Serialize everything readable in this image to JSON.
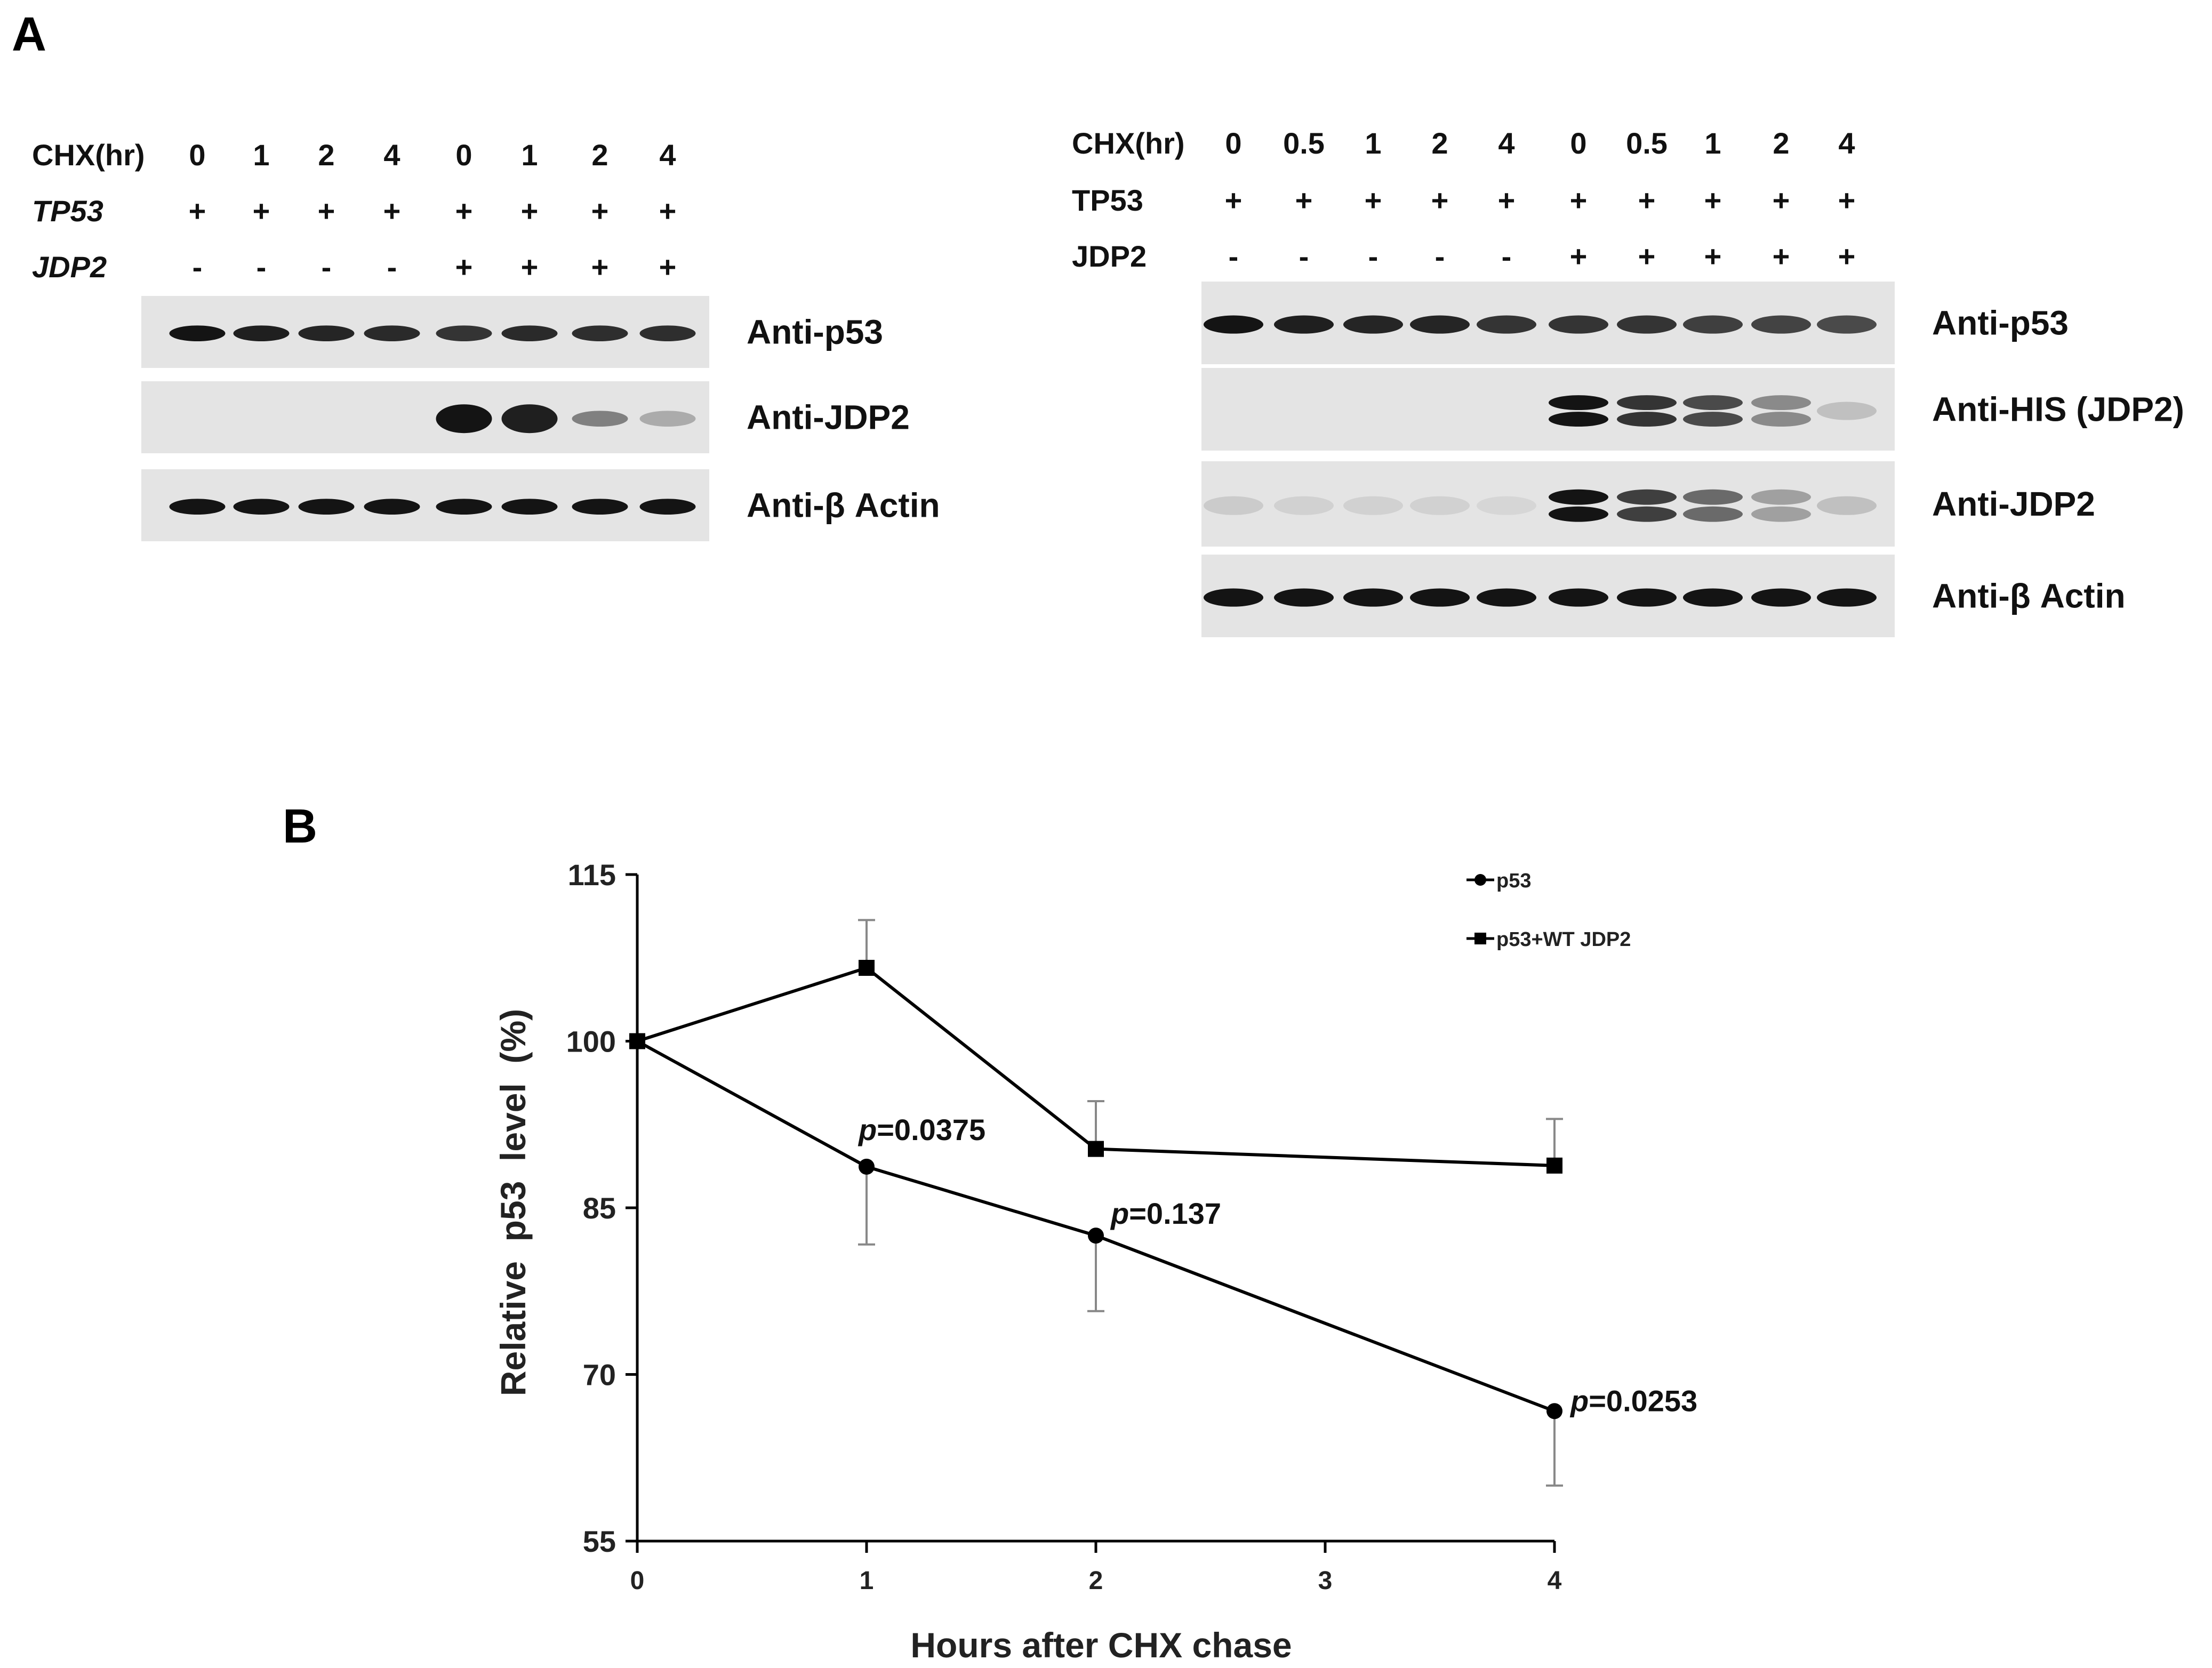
{
  "panel_a": {
    "label": "A",
    "left": {
      "rows": [
        {
          "label": "CHX(hr)",
          "italic": false,
          "values": [
            "0",
            "1",
            "2",
            "4",
            "0",
            "1",
            "2",
            "4"
          ]
        },
        {
          "label": "TP53",
          "italic": true,
          "values": [
            "+",
            "+",
            "+",
            "+",
            "+",
            "+",
            "+",
            "+"
          ]
        },
        {
          "label": "JDP2",
          "italic": true,
          "values": [
            "-",
            "-",
            "-",
            "-",
            "+",
            "+",
            "+",
            "+"
          ]
        }
      ],
      "blots": [
        {
          "label": "Anti-p53",
          "intensity": [
            1,
            0.95,
            0.92,
            0.9,
            0.85,
            0.9,
            0.88,
            0.88
          ],
          "bands": 1
        },
        {
          "label": "Anti-JDP2",
          "intensity": [
            0,
            0,
            0,
            0,
            1,
            0.95,
            0.5,
            0.3
          ],
          "bands": 1
        },
        {
          "label": "Anti-β Actin",
          "intensity": [
            1,
            1,
            1,
            1,
            1,
            1,
            1,
            1
          ],
          "bands": 1
        }
      ]
    },
    "right": {
      "rows": [
        {
          "label": "CHX(hr)",
          "italic": false,
          "values": [
            "0",
            "0.5",
            "1",
            "2",
            "4",
            "0",
            "0.5",
            "1",
            "2",
            "4"
          ]
        },
        {
          "label": "TP53",
          "italic": false,
          "values": [
            "+",
            "+",
            "+",
            "+",
            "+",
            "+",
            "+",
            "+",
            "+",
            "+"
          ]
        },
        {
          "label": "JDP2",
          "italic": false,
          "values": [
            "-",
            "-",
            "-",
            "-",
            "-",
            "+",
            "+",
            "+",
            "+",
            "+"
          ]
        }
      ],
      "blots": [
        {
          "label": "Anti-p53",
          "intensity": [
            1,
            0.95,
            0.92,
            0.92,
            0.85,
            0.85,
            0.85,
            0.8,
            0.78,
            0.75
          ],
          "bands": 1
        },
        {
          "label": "Anti-HIS (JDP2)",
          "intensity": [
            0,
            0,
            0,
            0,
            0,
            1,
            0.85,
            0.75,
            0.45,
            0.2
          ],
          "bands": 2
        },
        {
          "label": "Anti-JDP2",
          "intensity": [
            0.15,
            0.12,
            0.12,
            0.12,
            0.1,
            1,
            0.8,
            0.6,
            0.35,
            0.2
          ],
          "bands": 2
        },
        {
          "label": "Anti-β Actin",
          "intensity": [
            1,
            1,
            1,
            1,
            1,
            1,
            1,
            1,
            1,
            1
          ],
          "bands": 1
        }
      ]
    }
  },
  "panel_b": {
    "label": "B",
    "chart_data": {
      "type": "line",
      "xlabel": "Hours after CHX chase",
      "ylabel": "Relative  p53  level  (%)",
      "xlim": [
        0,
        4
      ],
      "ylim": [
        55,
        115
      ],
      "xticks": [
        "0",
        "1",
        "2",
        "3",
        "4"
      ],
      "yticks": [
        "55",
        "70",
        "85",
        "100",
        "115"
      ],
      "grid": false,
      "legend_position": "top-right",
      "series": [
        {
          "name": "p53",
          "marker": "circle",
          "x": [
            0,
            1,
            2,
            4
          ],
          "y": [
            100,
            88.7,
            82.5,
            66.7
          ],
          "err_plus": [
            0,
            0,
            0,
            0
          ],
          "err_minus": [
            0,
            7,
            6.8,
            6.7
          ]
        },
        {
          "name": "p53+WT JDP2",
          "marker": "square",
          "x": [
            0,
            1,
            2,
            4
          ],
          "y": [
            100,
            106.6,
            90.3,
            88.8
          ],
          "err_plus": [
            0,
            4.3,
            4.3,
            4.2
          ],
          "err_minus": [
            0,
            0,
            0,
            0
          ]
        }
      ],
      "annotations": [
        {
          "p": "p",
          "text": "=0.0375",
          "x": 1,
          "y": 88.7
        },
        {
          "p": "p",
          "text": "=0.137",
          "x": 2,
          "y": 82.5
        },
        {
          "p": "p",
          "text": "=0.0253",
          "x": 4,
          "y": 66.7
        }
      ]
    }
  }
}
